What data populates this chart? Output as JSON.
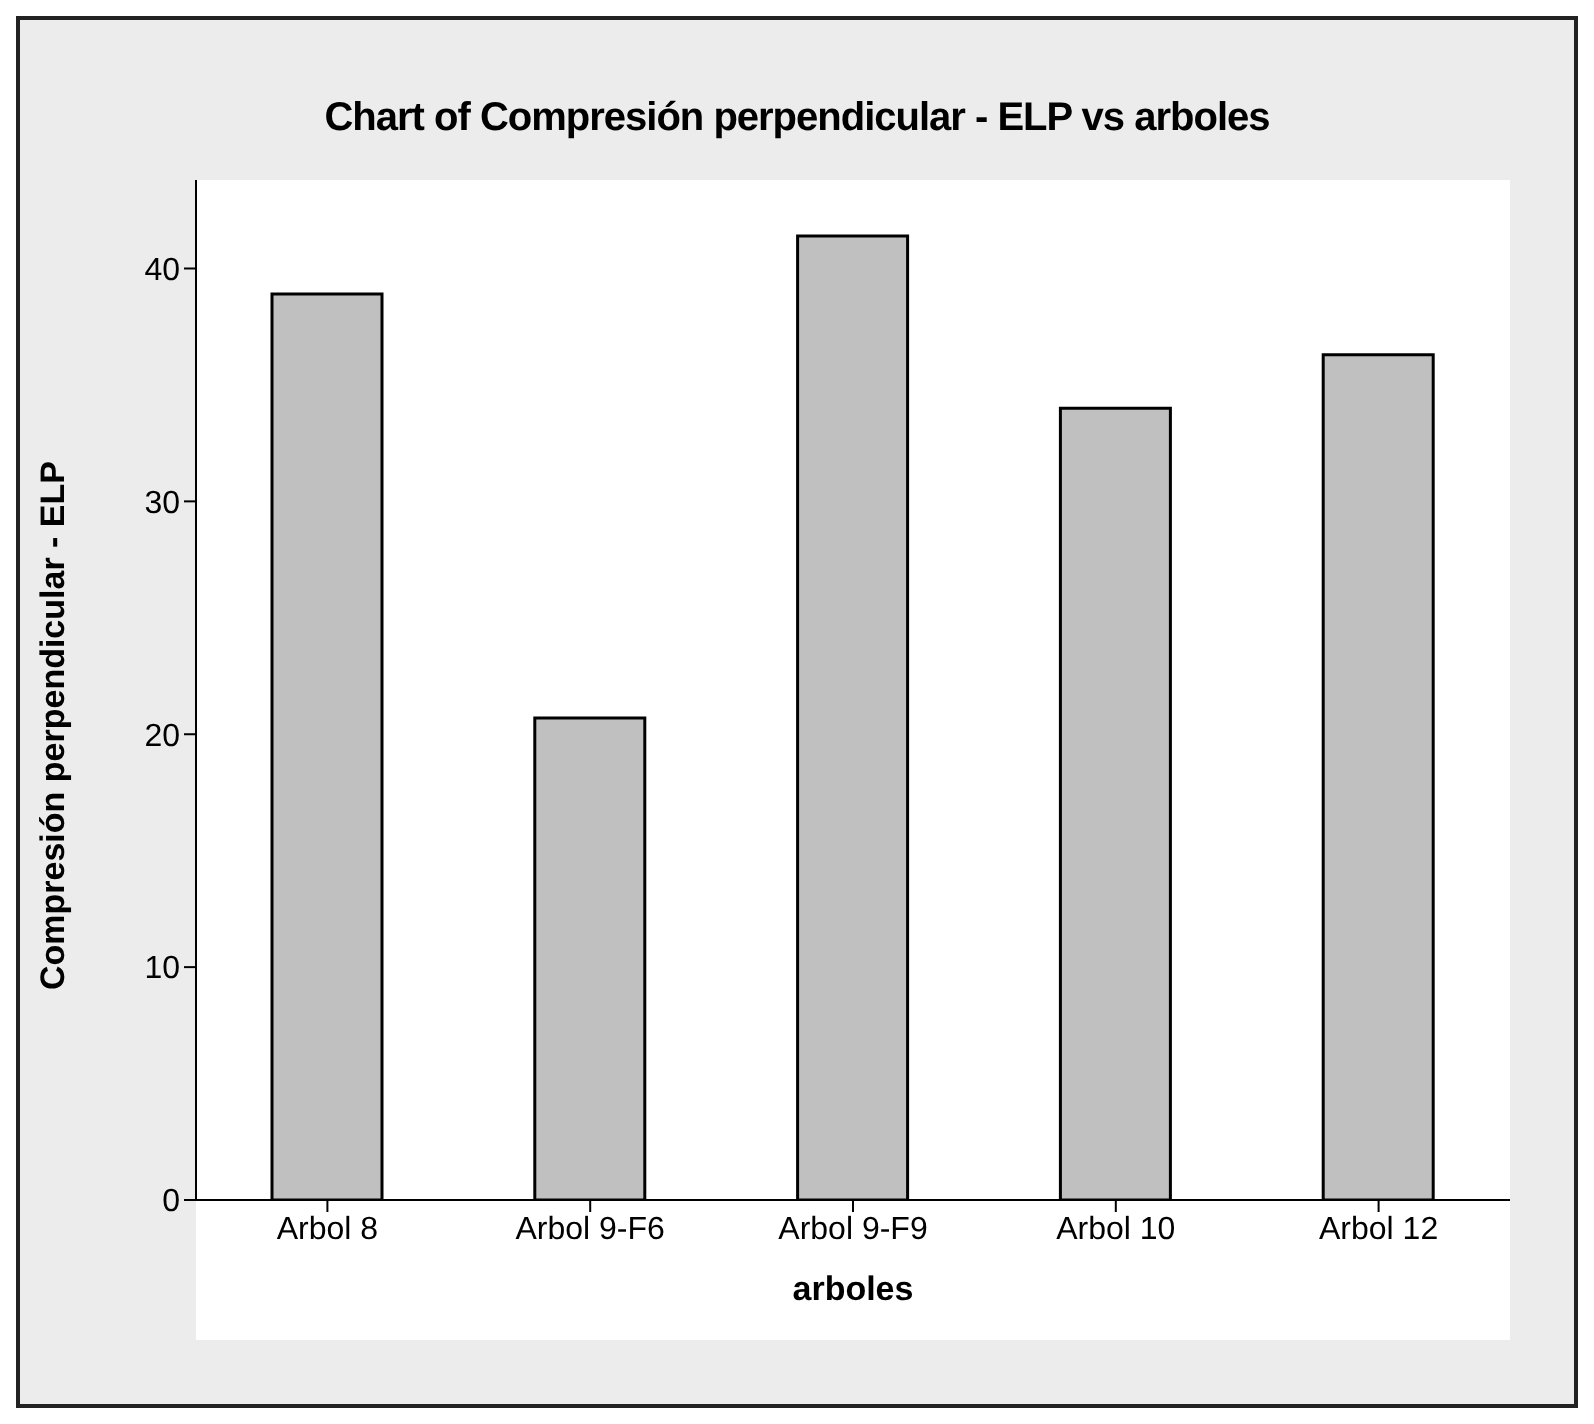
{
  "chart_data": {
    "type": "bar",
    "title": "Chart of Compresión perpendicular - ELP vs arboles",
    "xlabel": "arboles",
    "ylabel": "Compresión perpendicular - ELP",
    "categories": [
      "Arbol 8",
      "Arbol 9-F6",
      "Arbol 9-F9",
      "Arbol 10",
      "Arbol 12"
    ],
    "values": [
      38.9,
      20.7,
      41.4,
      34.0,
      36.3
    ],
    "color": "#c0c0c0",
    "ylim": [
      0,
      43.8
    ],
    "yticks": [
      0,
      10,
      20,
      30,
      40
    ],
    "grid": false,
    "legend": false
  }
}
